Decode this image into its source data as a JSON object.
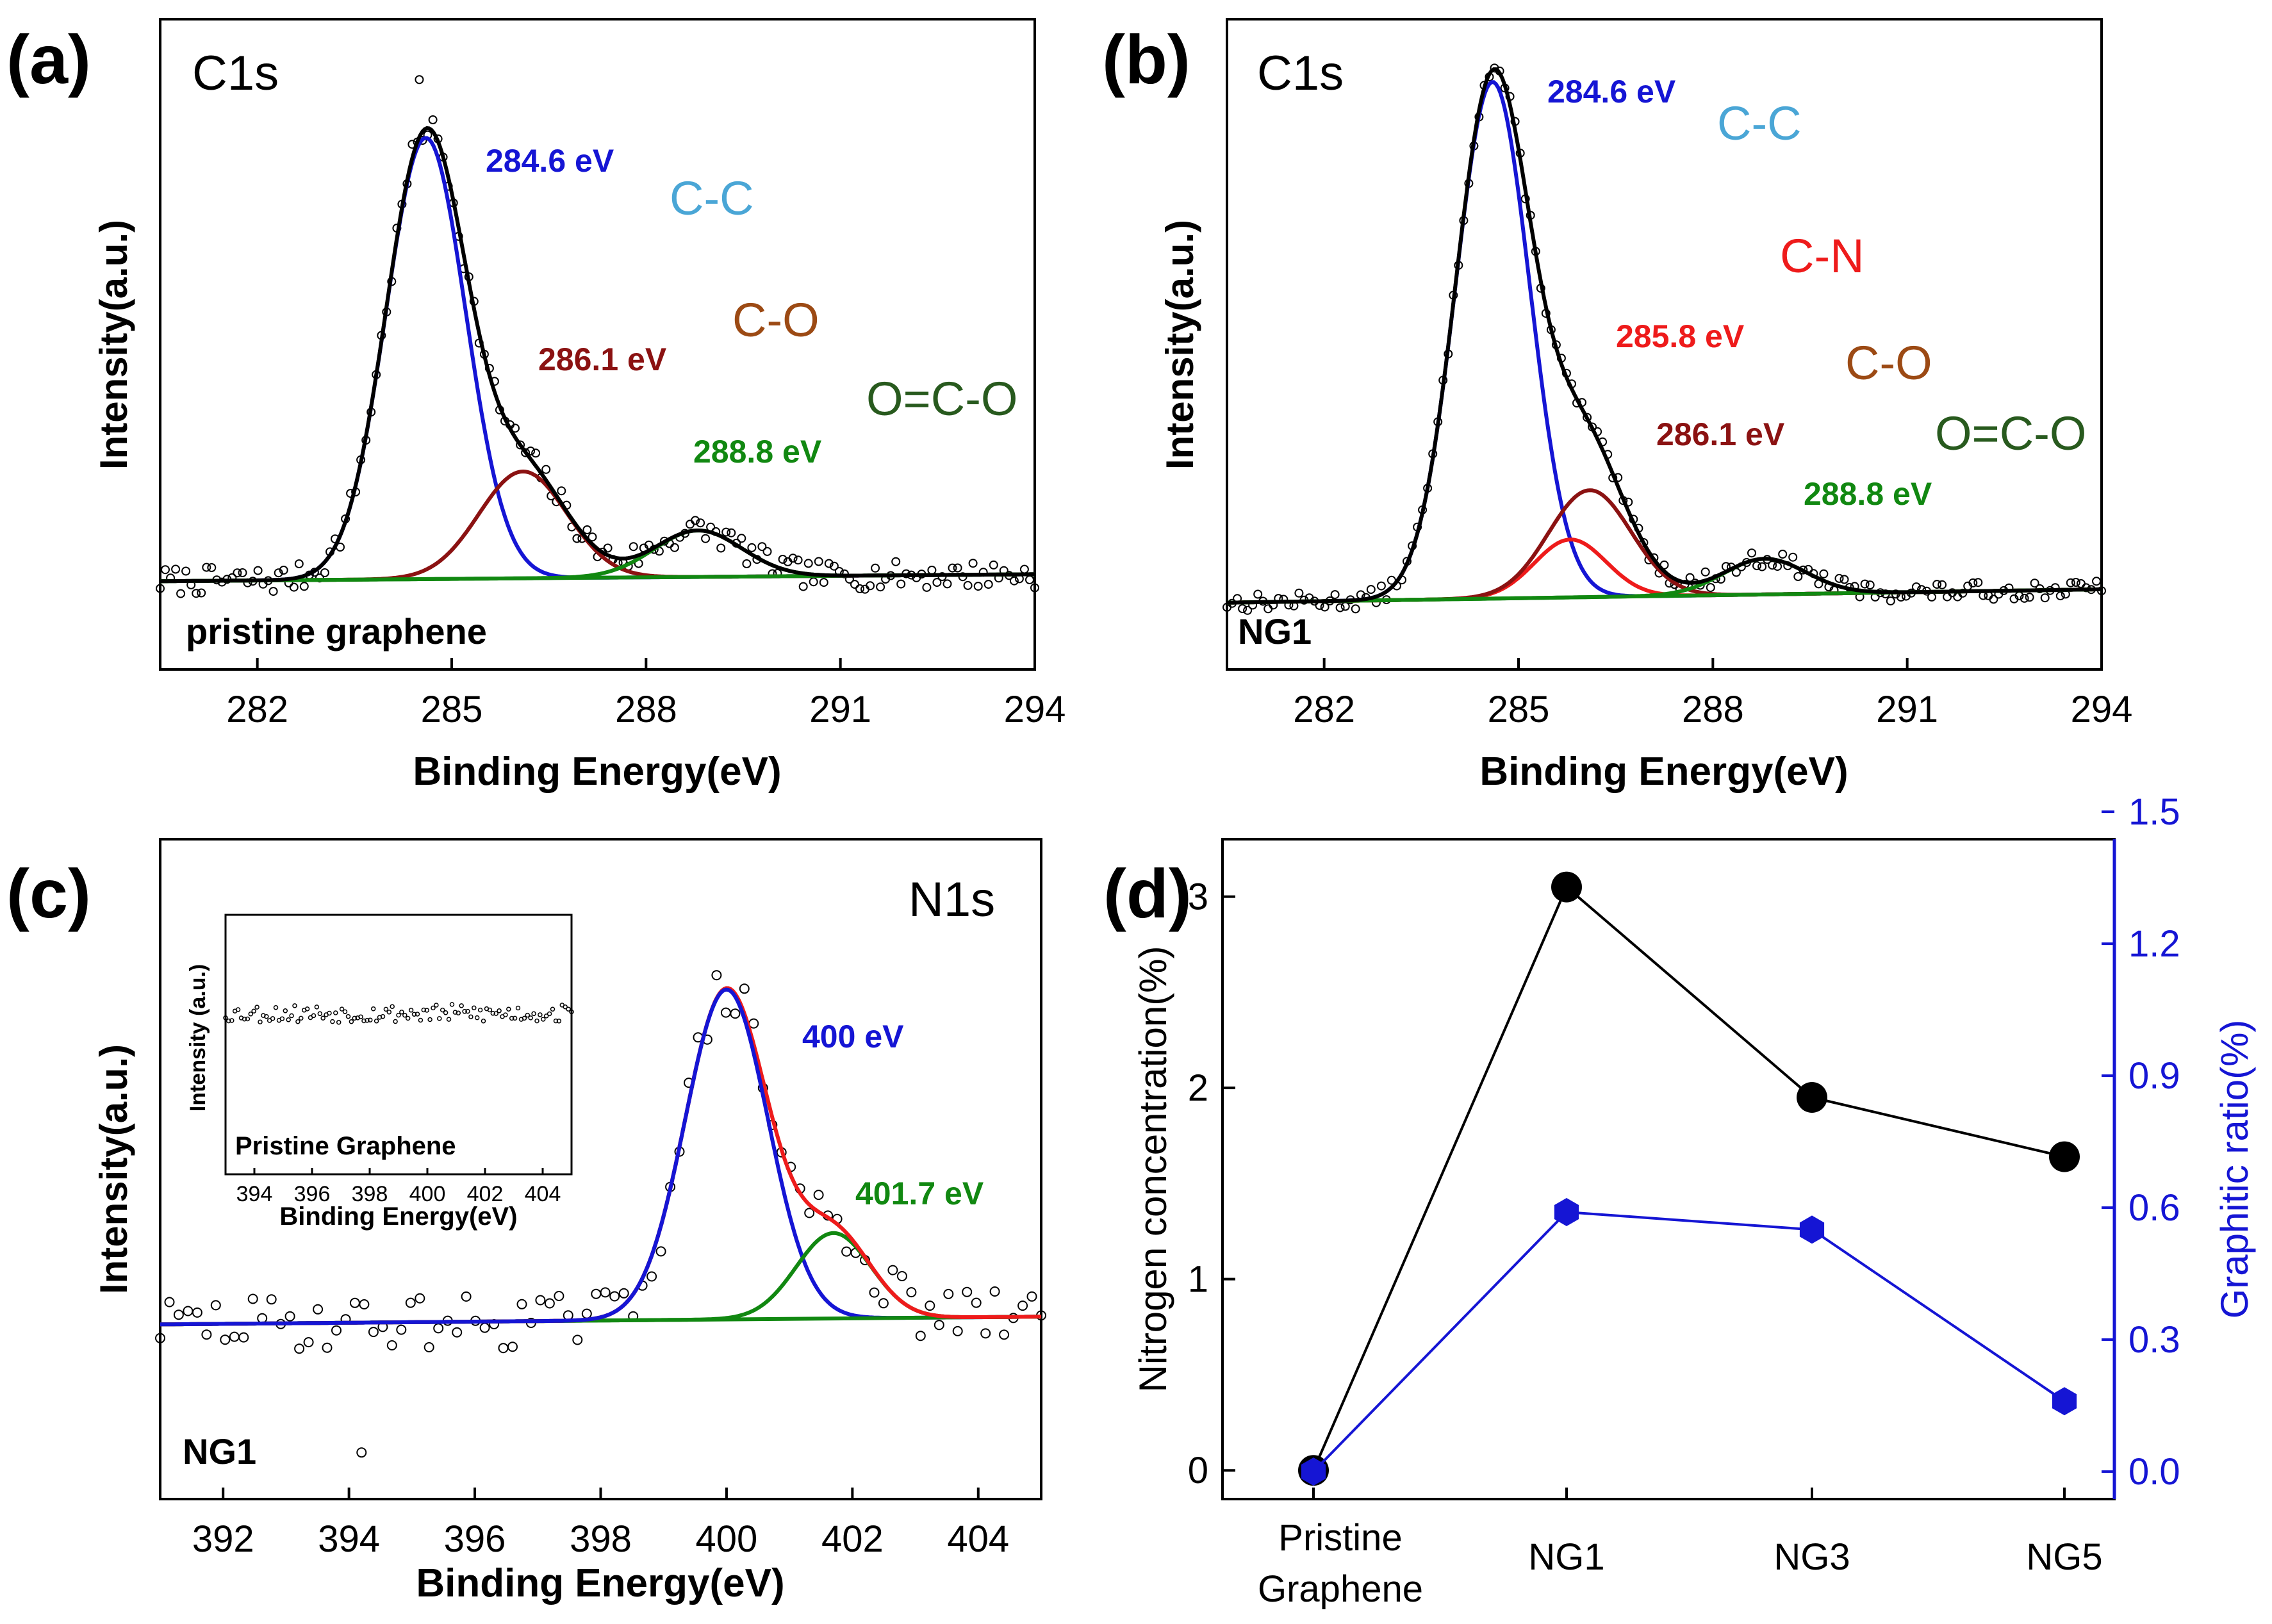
{
  "colors": {
    "axis": "#000000",
    "raw": "#000000",
    "envelope": "#000000",
    "blue": "#1515d4",
    "darkred": "#8b1212",
    "red": "#ee1b1b",
    "green": "#118811",
    "cyan": "#4aa6d6",
    "brown": "#9c4a14",
    "darkgreen": "#285a1e",
    "secondary": "#1515d4"
  },
  "chart_data": [
    {
      "panel": "(a)",
      "type": "line",
      "title": "C1s",
      "sample_label": "pristine graphene",
      "xlabel": "Binding Energy(eV)",
      "ylabel": "Intensity(a.u.)",
      "xlim": [
        280.5,
        294
      ],
      "ylim": [
        -0.2,
        1.2
      ],
      "xticks": [
        282,
        285,
        288,
        291,
        294
      ],
      "xtick_labels": [
        "282",
        "285",
        "288",
        "291",
        "294"
      ],
      "baseline": {
        "start": -0.01,
        "end": 0.005
      },
      "peaks": [
        {
          "center": 284.6,
          "amplitude": 0.95,
          "fwhm": 1.45,
          "label": "284.6 eV",
          "species": "C-C",
          "color": "blue"
        },
        {
          "center": 286.1,
          "amplitude": 0.23,
          "fwhm": 1.6,
          "label": "286.1 eV",
          "species": "C-O",
          "color": "darkred"
        },
        {
          "center": 288.8,
          "amplitude": 0.1,
          "fwhm": 1.6,
          "label": "288.8 eV",
          "species": "O=C-O",
          "color": "green"
        }
      ],
      "outlier": {
        "x": 284.5,
        "y": 1.07
      },
      "noise_level": 0.03
    },
    {
      "panel": "(b)",
      "type": "line",
      "title": "C1s",
      "sample_label": "NG1",
      "xlabel": "Binding Energy(eV)",
      "ylabel": "Intensity(a.u.)",
      "xlim": [
        280.5,
        294
      ],
      "ylim": [
        -0.18,
        1.28
      ],
      "xticks": [
        282,
        285,
        288,
        291,
        294
      ],
      "xtick_labels": [
        "282",
        "285",
        "288",
        "291",
        "294"
      ],
      "baseline": {
        "start": -0.03,
        "end": 0.0
      },
      "peaks": [
        {
          "center": 284.6,
          "amplitude": 1.16,
          "fwhm": 1.35,
          "label": "284.6 eV",
          "species": "C-C",
          "color": "blue"
        },
        {
          "center": 285.8,
          "amplitude": 0.13,
          "fwhm": 1.3,
          "label": "285.8 eV",
          "species": "C-N",
          "color": "red"
        },
        {
          "center": 286.1,
          "amplitude": 0.24,
          "fwhm": 1.5,
          "label": "286.1 eV",
          "species": "C-O",
          "color": "darkred"
        },
        {
          "center": 288.8,
          "amplitude": 0.08,
          "fwhm": 1.5,
          "label": "288.8 eV",
          "species": "O=C-O",
          "color": "green"
        }
      ],
      "noise_level": 0.02
    },
    {
      "panel": "(c)",
      "type": "line",
      "title": "N1s",
      "sample_label": "NG1",
      "xlabel": "Binding Energy(eV)",
      "ylabel": "Intensity(a.u.)",
      "xlim": [
        391,
        405
      ],
      "ylim": [
        -0.45,
        1.25
      ],
      "xticks": [
        392,
        394,
        396,
        398,
        400,
        402,
        404
      ],
      "xtick_labels": [
        "392",
        "394",
        "396",
        "398",
        "400",
        "402",
        "404"
      ],
      "baseline": {
        "start": 0.0,
        "end": 0.02
      },
      "peaks": [
        {
          "center": 400.0,
          "amplitude": 0.85,
          "fwhm": 1.55,
          "label": "400 eV",
          "color": "blue"
        },
        {
          "center": 401.7,
          "amplitude": 0.22,
          "fwhm": 1.4,
          "label": "401.7 eV",
          "color": "green"
        }
      ],
      "outlier": {
        "x": 394.2,
        "y": -0.33
      },
      "noise_level": 0.07,
      "inset": {
        "sample_label": "Pristine Graphene",
        "xlabel": "Binding Energy(eV)",
        "ylabel": "Intensity (a.u.)",
        "xlim": [
          393,
          405
        ],
        "ylim": [
          0,
          1
        ],
        "xticks": [
          394,
          396,
          398,
          400,
          402,
          404
        ],
        "xtick_labels": [
          "394",
          "396",
          "398",
          "400",
          "402",
          "404"
        ],
        "level": 0.62,
        "noise_level": 0.035
      }
    },
    {
      "panel": "(d)",
      "type": "line",
      "categories": [
        "Pristine Graphene",
        "NG1",
        "NG3",
        "NG5"
      ],
      "category_lines": [
        [
          "Pristine",
          "Graphene"
        ],
        [
          "NG1"
        ],
        [
          "NG3"
        ],
        [
          "NG5"
        ]
      ],
      "ylabel": "Nitrogen concentration(%)",
      "y2label": "Graphitic ratio(%)",
      "ylim": [
        -0.15,
        3.3
      ],
      "y2lim": [
        -0.0625,
        1.4375
      ],
      "yticks": [
        0,
        1,
        2,
        3
      ],
      "ytick_labels": [
        "0",
        "1",
        "2",
        "3"
      ],
      "y2ticks": [
        0.0,
        0.3,
        0.6,
        0.9,
        1.2,
        1.5
      ],
      "y2tick_labels": [
        "0.0",
        "0.3",
        "0.6",
        "0.9",
        "1.2",
        "1.5"
      ],
      "series": [
        {
          "name": "Nitrogen concentration",
          "axis": "left",
          "marker": "circle",
          "color": "black",
          "values": [
            0.0,
            3.05,
            1.95,
            1.64
          ]
        },
        {
          "name": "Graphitic ratio",
          "axis": "right",
          "marker": "hexagon",
          "color": "blue",
          "values": [
            0.0,
            0.59,
            0.55,
            0.16
          ]
        }
      ]
    }
  ]
}
